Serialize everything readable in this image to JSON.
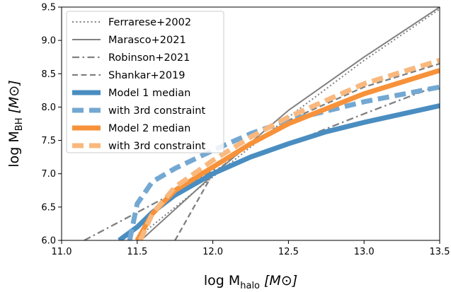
{
  "chart_data": {
    "type": "line",
    "xlabel": {
      "main": "log M",
      "sub": "halo",
      "unit": "[M⊙]"
    },
    "ylabel": {
      "main": "log M",
      "sub": "BH",
      "unit": "[M⊙]"
    },
    "xlim": [
      11.0,
      13.5
    ],
    "ylim": [
      6.0,
      9.5
    ],
    "xticks": [
      "11.0",
      "11.5",
      "12.0",
      "12.5",
      "13.0",
      "13.5"
    ],
    "yticks": [
      "6.0",
      "6.5",
      "7.0",
      "7.5",
      "8.0",
      "8.5",
      "9.0",
      "9.5"
    ],
    "grid": false,
    "legend_position": "top-left",
    "series": [
      {
        "name": "Ferrarese+2002",
        "color": "#808080",
        "dash": "dotted",
        "width": "thin",
        "x": [
          11.45,
          12.0,
          12.5,
          13.0,
          13.5
        ],
        "y": [
          5.95,
          6.95,
          7.85,
          8.7,
          9.47
        ]
      },
      {
        "name": "Marasco+2021",
        "color": "#808080",
        "dash": "solid",
        "width": "thin",
        "x": [
          11.5,
          12.0,
          12.5,
          13.0,
          13.5
        ],
        "y": [
          5.95,
          6.98,
          7.95,
          8.75,
          9.5
        ]
      },
      {
        "name": "Robinson+2021",
        "color": "#808080",
        "dash": "dashdot",
        "width": "medium",
        "x": [
          11.15,
          11.5,
          11.75,
          12.0,
          12.5,
          13.0,
          13.5
        ],
        "y": [
          6.0,
          6.42,
          6.72,
          7.05,
          7.45,
          7.9,
          8.33
        ]
      },
      {
        "name": "Shankar+2019",
        "color": "#808080",
        "dash": "dashed",
        "width": "medium",
        "x": [
          11.75,
          11.9,
          12.0,
          12.25,
          12.5,
          13.0,
          13.5
        ],
        "y": [
          6.0,
          6.6,
          7.0,
          7.45,
          7.8,
          8.3,
          8.65
        ]
      },
      {
        "name": "Model 1 median",
        "color": "#4a8dc1",
        "dash": "solid",
        "width": "thick",
        "x": [
          11.38,
          11.5,
          11.6,
          11.75,
          12.0,
          12.25,
          12.5,
          12.75,
          13.0,
          13.5
        ],
        "y": [
          6.0,
          6.2,
          6.42,
          6.68,
          7.0,
          7.25,
          7.45,
          7.63,
          7.77,
          8.02
        ]
      },
      {
        "name": "with 3rd constraint",
        "color": "#73a8d2",
        "dash": "dashed",
        "width": "thick",
        "x": [
          11.45,
          11.5,
          11.6,
          11.75,
          12.0,
          12.25,
          12.5,
          13.0,
          13.5
        ],
        "y": [
          6.0,
          6.55,
          6.88,
          7.08,
          7.35,
          7.6,
          7.8,
          8.08,
          8.3
        ]
      },
      {
        "name": "Model 2 median",
        "color": "#f7923a",
        "dash": "solid",
        "width": "thick",
        "x": [
          11.5,
          11.6,
          11.75,
          12.0,
          12.25,
          12.5,
          13.0,
          13.5
        ],
        "y": [
          6.0,
          6.4,
          6.75,
          7.1,
          7.45,
          7.75,
          8.2,
          8.55
        ]
      },
      {
        "name": "with 3rd constraint",
        "color": "#f9b87e",
        "dash": "dashed",
        "width": "thick",
        "x": [
          11.52,
          11.6,
          11.75,
          12.0,
          12.25,
          12.5,
          13.0,
          13.5
        ],
        "y": [
          6.0,
          6.4,
          6.8,
          7.2,
          7.55,
          7.85,
          8.35,
          8.7
        ]
      }
    ]
  }
}
